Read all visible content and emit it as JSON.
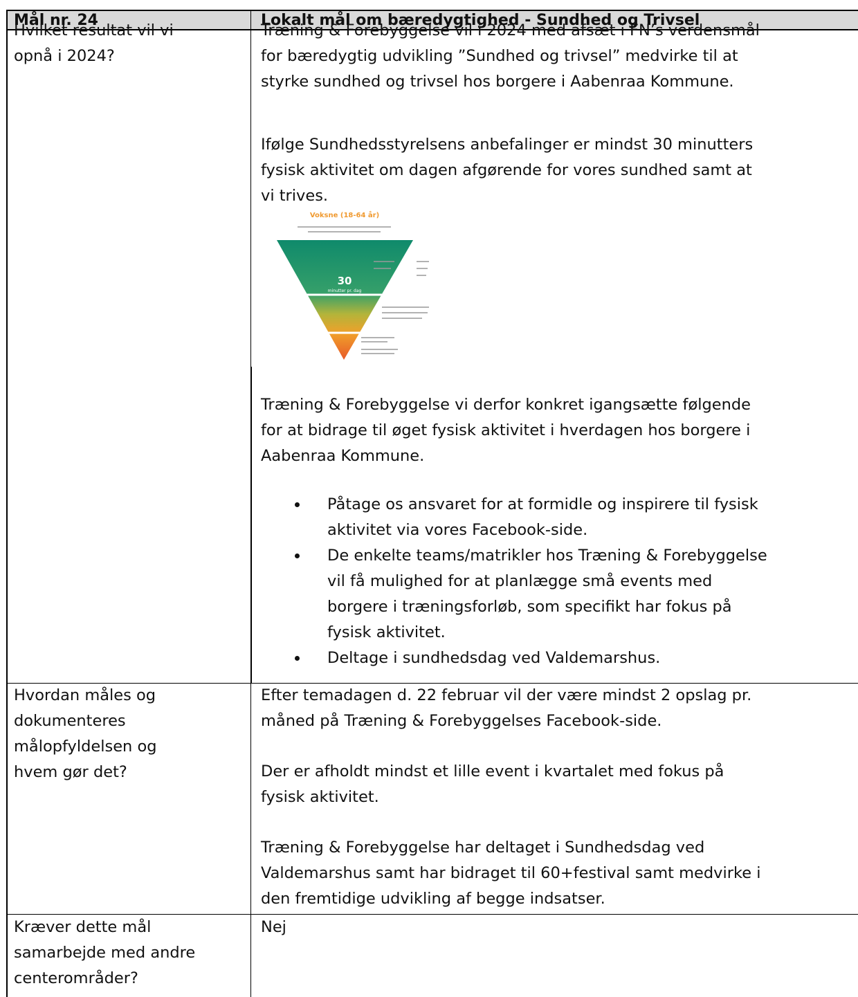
{
  "table": {
    "header": [
      "Mål nr. 24",
      "Lokalt mål om bæredygtighed - Sundhed og Trivsel"
    ],
    "rows": [
      {
        "question": [
          "Hvilket resultat vil vi",
          "opnå i 2024?"
        ],
        "answer": [
          {
            "lines": [
              "Træning & Forebyggelse vil i 2024 med afsæt i FN’s verdensmål",
              "for bæredygtig udvikling ”Sundhed og trivsel” medvirke til at",
              "styrke sundhed og trivsel hos borgere i Aabenraa Kommune."
            ]
          },
          {
            "lines": [
              "Ifølge Sundhedsstyrelsens anbefalinger er mindst 30 minutters",
              "fysisk aktivitet om dagen afgørende for vores sundhed samt at",
              "vi trives."
            ]
          },
          {
            "figure": {
              "title": "Voksne (18-64 år)",
              "number": "30",
              "unit": "minutter pr. dag"
            }
          },
          {
            "lines": [
              "Træning & Forebyggelse vi derfor konkret igangsætte følgende",
              "for at bidrage til øget fysisk aktivitet i hverdagen hos borgere i",
              "Aabenraa Kommune."
            ]
          },
          {
            "bullets": [
              [
                "Påtage os ansvaret for at formidle og inspirere til fysisk",
                "aktivitet via vores Facebook-side."
              ],
              [
                "De enkelte teams/matrikler hos Træning & Forebyggelse",
                "vil få mulighed for at planlægge små events med",
                "borgere i træningsforløb, som specifikt har fokus på",
                "fysisk aktivitet."
              ],
              [
                "Deltage i sundhedsdag ved Valdemarshus."
              ]
            ]
          }
        ]
      },
      {
        "question": [
          "Hvordan måles og",
          "dokumenteres",
          "målopfyldelsen og",
          "hvem gør det?"
        ],
        "answer": [
          {
            "lines": [
              "Efter temadagen d. 22 februar vil der være mindst 2 opslag pr.",
              "måned på Træning & Forebyggelses Facebook-side."
            ]
          },
          {
            "lines": [
              "Der er afholdt mindst et lille event i kvartalet med fokus på",
              "fysisk aktivitet."
            ]
          },
          {
            "lines": [
              "Træning & Forebyggelse har deltaget i Sundhedsdag ved",
              "Valdemarshus samt har bidraget til 60+festival samt medvirke i",
              "den fremtidige udvikling af begge indsatser."
            ]
          }
        ]
      },
      {
        "question": [
          "Kræver dette mål",
          "samarbejde med andre",
          "centerområder?"
        ],
        "answer": [
          {
            "lines": [
              "Nej"
            ]
          }
        ]
      }
    ]
  }
}
